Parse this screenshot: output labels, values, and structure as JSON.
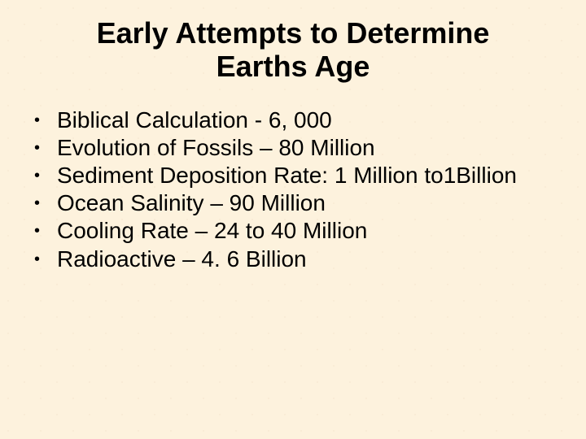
{
  "slide": {
    "background_color": "#fdf2dd",
    "text_color": "#000000",
    "title": {
      "line1": "Early Attempts to Determine",
      "line2": "Earths Age",
      "fontsize": 36,
      "weight": "bold",
      "align": "center"
    },
    "bullets": {
      "fontsize": 28,
      "marker": "•",
      "items": [
        "Biblical Calculation -  6, 000",
        "Evolution of Fossils – 80 Million",
        "Sediment Deposition Rate: 1 Million to1Billion",
        "Ocean Salinity – 90 Million",
        "Cooling Rate – 24 to 40 Million",
        "Radioactive – 4. 6 Billion"
      ]
    }
  }
}
